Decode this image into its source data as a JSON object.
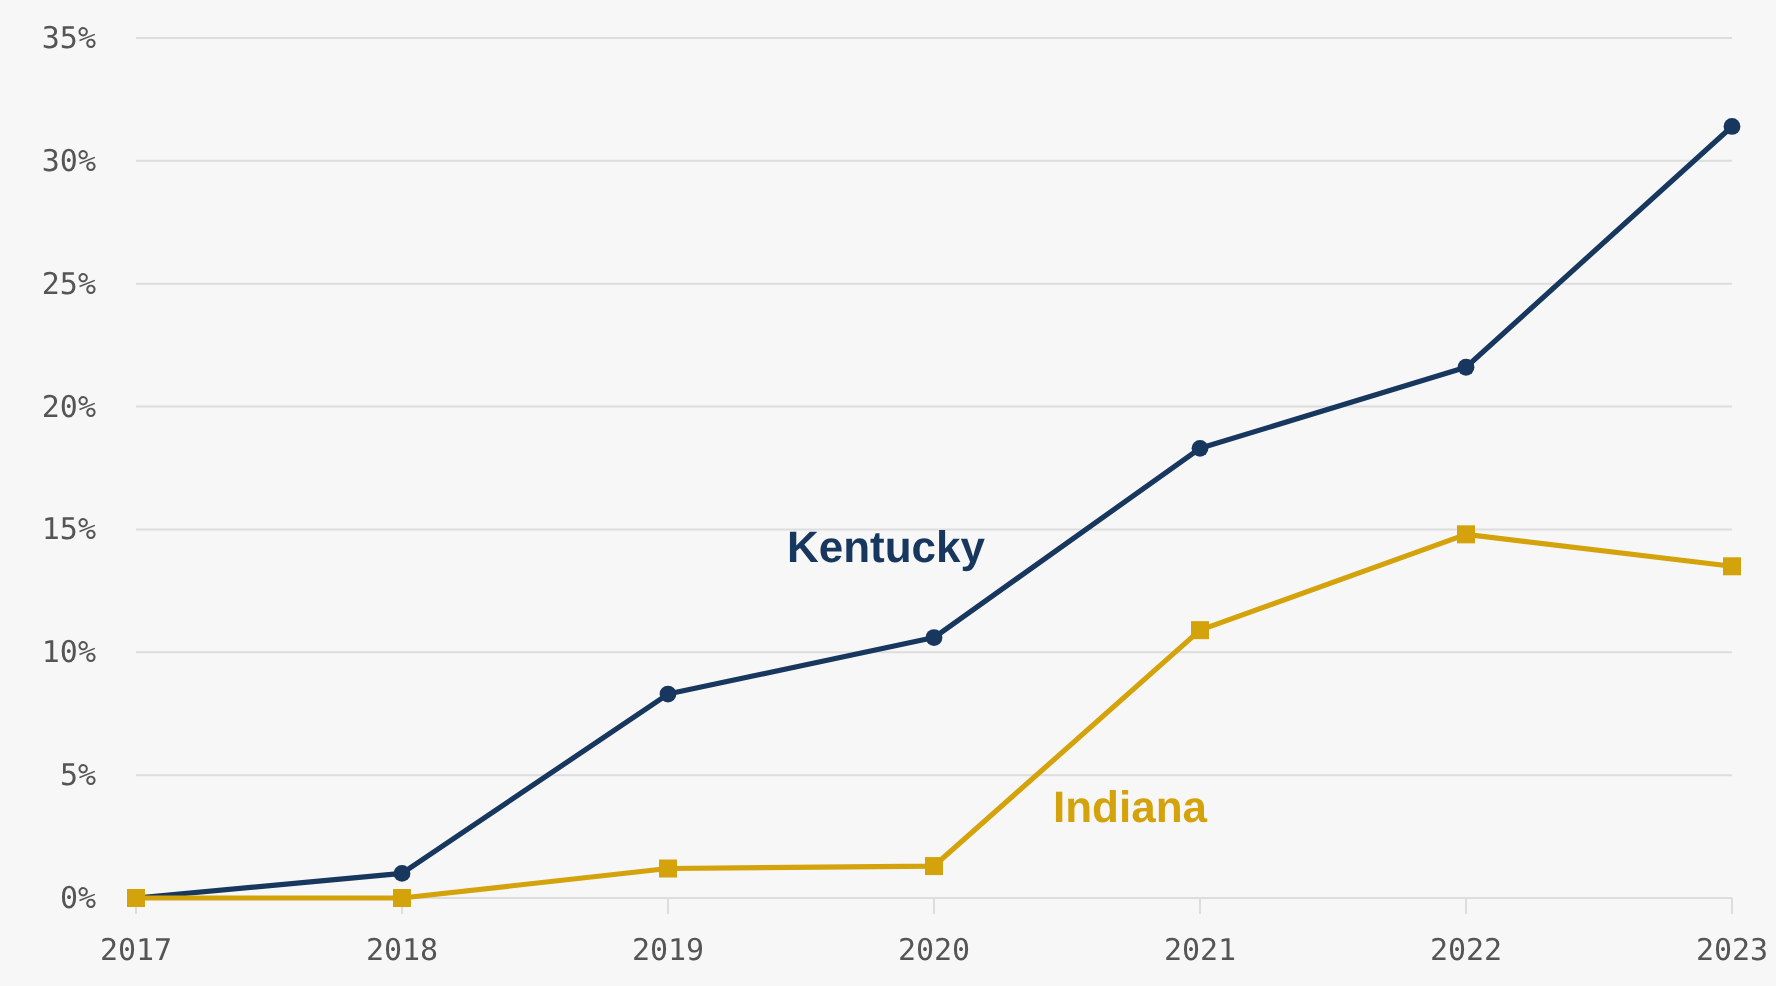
{
  "chart_data": {
    "type": "line",
    "x": [
      2017,
      2018,
      2019,
      2020,
      2021,
      2022,
      2023
    ],
    "series": [
      {
        "name": "Kentucky",
        "color": "#17375e",
        "marker": "circle",
        "values": [
          0,
          1.0,
          8.3,
          10.6,
          18.3,
          21.6,
          31.4
        ]
      },
      {
        "name": "Indiana",
        "color": "#d4a20a",
        "marker": "square",
        "values": [
          0,
          0,
          1.2,
          1.3,
          10.9,
          14.8,
          13.5
        ]
      }
    ],
    "xlim": [
      2017,
      2023
    ],
    "xticks": [
      2017,
      2018,
      2019,
      2020,
      2021,
      2022,
      2023
    ],
    "ylim": [
      0,
      35
    ],
    "yticks": [
      {
        "value": 0,
        "label": "0%"
      },
      {
        "value": 5,
        "label": "5%"
      },
      {
        "value": 10,
        "label": "10%"
      },
      {
        "value": 15,
        "label": "15%"
      },
      {
        "value": 20,
        "label": "20%"
      },
      {
        "value": 25,
        "label": "25%"
      },
      {
        "value": 30,
        "label": "30%"
      },
      {
        "value": 35,
        "label": "35%"
      }
    ],
    "grid": "y",
    "line_style": "solid"
  }
}
